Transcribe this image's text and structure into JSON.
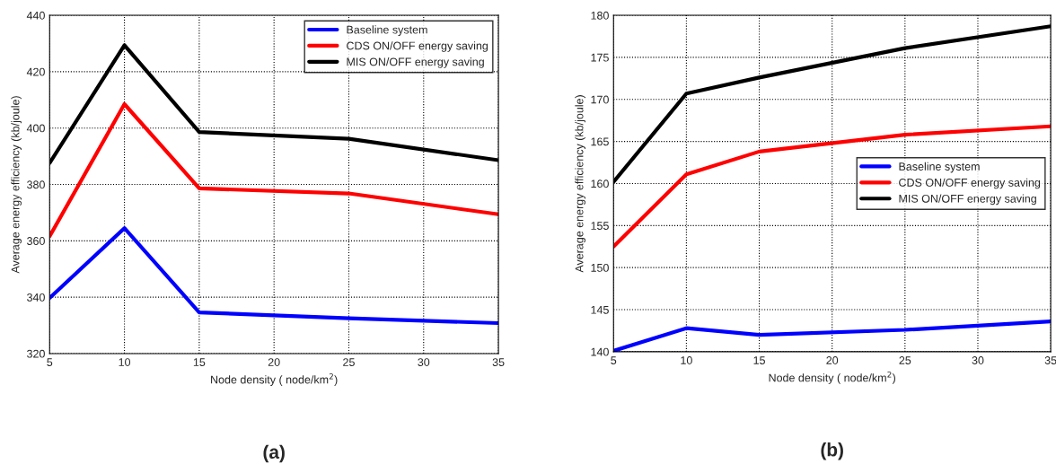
{
  "chart_data": [
    {
      "type": "line",
      "xlabel": "Node density ( node/km$^{2}$)",
      "ylabel": "Average energy efficiency (kb/joule)",
      "x": [
        5,
        10,
        15,
        25,
        35
      ],
      "xlim": [
        5,
        35
      ],
      "xticks": [
        5,
        10,
        15,
        20,
        25,
        30,
        35
      ],
      "ylim": [
        320,
        440
      ],
      "yticks": [
        320,
        340,
        360,
        380,
        400,
        420,
        440
      ],
      "grid": true,
      "legend": "top right",
      "line_style": "solid",
      "annotations": [
        "(a)"
      ],
      "series": [
        {
          "name": "Baseline system",
          "color": "#0000ff",
          "values": [
            339.7,
            364.5,
            334.6,
            332.5,
            330.8
          ]
        },
        {
          "name": "CDS ON/OFF energy saving",
          "color": "#ff0000",
          "values": [
            361.6,
            408.5,
            378.6,
            376.8,
            369.4
          ]
        },
        {
          "name": "MIS ON/OFF energy saving",
          "color": "#000000",
          "values": [
            387.6,
            429.4,
            398.6,
            396.2,
            388.6
          ]
        }
      ]
    },
    {
      "type": "line",
      "xlabel": "Node density ( node/km$^{2}$)",
      "ylabel": "Average energy efficiency (kb/joule)",
      "x": [
        5,
        10,
        15,
        25,
        35
      ],
      "xlim": [
        5,
        35
      ],
      "xticks": [
        5,
        10,
        15,
        20,
        25,
        30,
        35
      ],
      "ylim": [
        140,
        180
      ],
      "yticks": [
        140,
        145,
        150,
        155,
        160,
        165,
        170,
        175,
        180
      ],
      "grid": true,
      "legend": "right",
      "line_style": "solid",
      "annotations": [
        "(b)"
      ],
      "series": [
        {
          "name": "Baseline system",
          "color": "#0000ff",
          "values": [
            140.1,
            142.8,
            142.0,
            142.6,
            143.6
          ]
        },
        {
          "name": "CDS ON/OFF energy saving",
          "color": "#ff0000",
          "values": [
            152.5,
            161.1,
            163.8,
            165.8,
            166.8
          ]
        },
        {
          "name": "MIS ON/OFF energy saving",
          "color": "#000000",
          "values": [
            160.2,
            170.7,
            172.6,
            176.1,
            178.7
          ]
        }
      ]
    }
  ]
}
